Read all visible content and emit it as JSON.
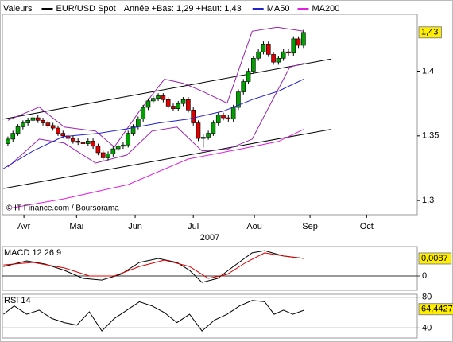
{
  "chart_data": [
    {
      "type": "candlestick",
      "header_label": "Valeurs",
      "title": "EUR/USD Spot",
      "subtitle": "Année +Bas: 1,29 +Haut: 1,43",
      "source": "© IT-Finance.com / Boursorama",
      "xlabel": "2007",
      "xlim": [
        -1.1,
        81.7
      ],
      "ylim": [
        1.289,
        1.444
      ],
      "xticks": [
        {
          "value": 3.2,
          "label": "Avr"
        },
        {
          "value": 13.7,
          "label": "Mai"
        },
        {
          "value": 25.4,
          "label": "Jun"
        },
        {
          "value": 37,
          "label": "Jul"
        },
        {
          "value": 49.2,
          "label": "Aou"
        },
        {
          "value": 60.3,
          "label": "Sep"
        },
        {
          "value": 71.6,
          "label": "Oct"
        }
      ],
      "yticks": [
        {
          "value": 1.4,
          "label": "1,4"
        },
        {
          "value": 1.35,
          "label": "1,35"
        },
        {
          "value": 1.3,
          "label": "1,3"
        }
      ],
      "last_label": {
        "value": 1.43,
        "label": "1,43"
      },
      "up_color": "#00a000",
      "down_color": "#e00000",
      "series": [
        {
          "name": "EUR/USD Spot",
          "color": "#000000",
          "open": [
            1.344,
            1.3475,
            1.352,
            1.357,
            1.36,
            1.362,
            1.364,
            1.362,
            1.36,
            1.358,
            1.356,
            1.352,
            1.35,
            1.348,
            1.346,
            1.345,
            1.344,
            1.346,
            1.342,
            1.337,
            1.333,
            1.336,
            1.34,
            1.342,
            1.343,
            1.352,
            1.357,
            1.363,
            1.372,
            1.377,
            1.379,
            1.381,
            1.378,
            1.373,
            1.371,
            1.375,
            1.378,
            1.37,
            1.36,
            1.348,
            1.349,
            1.352,
            1.36,
            1.366,
            1.364,
            1.363,
            1.372,
            1.384,
            1.392,
            1.4,
            1.41,
            1.415,
            1.421,
            1.413,
            1.407,
            1.41,
            1.415,
            1.414,
            1.425,
            1.42
          ],
          "high": [
            1.3495,
            1.354,
            1.359,
            1.362,
            1.364,
            1.366,
            1.366,
            1.364,
            1.362,
            1.36,
            1.358,
            1.354,
            1.352,
            1.35,
            1.348,
            1.347,
            1.348,
            1.348,
            1.344,
            1.339,
            1.338,
            1.342,
            1.344,
            1.345,
            1.354,
            1.359,
            1.365,
            1.374,
            1.379,
            1.381,
            1.383,
            1.383,
            1.38,
            1.375,
            1.377,
            1.38,
            1.38,
            1.372,
            1.362,
            1.351,
            1.354,
            1.362,
            1.368,
            1.368,
            1.366,
            1.374,
            1.386,
            1.394,
            1.402,
            1.412,
            1.417,
            1.423,
            1.423,
            1.415,
            1.412,
            1.417,
            1.417,
            1.427,
            1.427,
            1.432
          ],
          "low": [
            1.342,
            1.3455,
            1.35,
            1.355,
            1.358,
            1.36,
            1.36,
            1.358,
            1.356,
            1.354,
            1.35,
            1.348,
            1.346,
            1.344,
            1.343,
            1.342,
            1.342,
            1.34,
            1.335,
            1.331,
            1.331,
            1.334,
            1.338,
            1.34,
            1.341,
            1.35,
            1.355,
            1.361,
            1.37,
            1.375,
            1.377,
            1.376,
            1.371,
            1.369,
            1.369,
            1.373,
            1.368,
            1.358,
            1.346,
            1.341,
            1.347,
            1.35,
            1.358,
            1.362,
            1.361,
            1.361,
            1.37,
            1.382,
            1.39,
            1.398,
            1.408,
            1.413,
            1.411,
            1.405,
            1.405,
            1.408,
            1.412,
            1.412,
            1.418,
            1.418
          ],
          "close": [
            1.3475,
            1.352,
            1.357,
            1.36,
            1.362,
            1.364,
            1.362,
            1.36,
            1.358,
            1.356,
            1.352,
            1.35,
            1.348,
            1.346,
            1.345,
            1.344,
            1.346,
            1.342,
            1.337,
            1.333,
            1.336,
            1.34,
            1.342,
            1.343,
            1.352,
            1.357,
            1.363,
            1.372,
            1.377,
            1.379,
            1.381,
            1.378,
            1.373,
            1.371,
            1.375,
            1.378,
            1.37,
            1.36,
            1.348,
            1.349,
            1.352,
            1.36,
            1.366,
            1.364,
            1.363,
            1.372,
            1.384,
            1.392,
            1.4,
            1.41,
            1.415,
            1.421,
            1.413,
            1.407,
            1.41,
            1.415,
            1.414,
            1.425,
            1.42,
            1.43
          ]
        },
        {
          "name": "MA50",
          "color": "#2222cc",
          "x": [
            -0.9,
            5,
            11,
            18,
            24,
            30,
            36,
            43,
            49,
            54,
            59
          ],
          "values": [
            1.3247,
            1.3383,
            1.3494,
            1.3519,
            1.3556,
            1.3599,
            1.363,
            1.3691,
            1.3784,
            1.3846,
            1.3938
          ]
        },
        {
          "name": "MA200",
          "color": "#e020e0",
          "x": [
            0,
            11,
            24,
            36,
            46,
            54,
            59
          ],
          "values": [
            1.2938,
            1.3012,
            1.3123,
            1.3321,
            1.3395,
            1.3457,
            1.355
          ]
        }
      ],
      "overlays": [
        {
          "color": "#000000",
          "x": [
            -0.9,
            64.4
          ],
          "values": [
            1.363,
            1.4093
          ]
        },
        {
          "color": "#000000",
          "x": [
            -0.9,
            64.4
          ],
          "values": [
            1.3093,
            1.355
          ]
        },
        {
          "color": "#9a22b0",
          "x": [
            0,
            6.25,
            11.25,
            17.5,
            21.25,
            26.25,
            31.25,
            35,
            38.75,
            43.75,
            48.75,
            53.75,
            59.125
          ],
          "values": [
            1.362,
            1.3722,
            1.3568,
            1.3537,
            1.3414,
            1.3691,
            1.3938,
            1.3907,
            1.3846,
            1.3753,
            1.4309,
            1.434,
            1.4309
          ]
        },
        {
          "color": "#9a22b0",
          "x": [
            0,
            6.25,
            11.25,
            17.5,
            23.75,
            28.75,
            33.75,
            38.75,
            43.75,
            48.75,
            52.5,
            56.25,
            59.125
          ],
          "values": [
            1.3259,
            1.3475,
            1.3444,
            1.329,
            1.3352,
            1.3537,
            1.3568,
            1.3383,
            1.3395,
            1.3475,
            1.3753,
            1.4031,
            1.4062
          ]
        }
      ]
    },
    {
      "type": "line",
      "title": "MACD 12 26 9",
      "xlim": [
        -1.1,
        81.7
      ],
      "ylim": [
        -0.0071,
        0.0146
      ],
      "yticks": [
        0
      ],
      "last_label": {
        "value": 0.0087,
        "label": "0,0087"
      },
      "series": [
        {
          "color": "#000000",
          "x": [
            -0.875,
            3.75,
            7.5,
            11.25,
            15,
            18.75,
            22.5,
            26.25,
            30,
            33.75,
            36.25,
            38.75,
            41.875,
            45,
            48.75,
            51.25,
            55,
            59.125
          ],
          "values": [
            0.0047,
            0.0075,
            0.0059,
            0.0028,
            -0.0012,
            -0.002,
            0.0008,
            0.0067,
            0.0087,
            0.0067,
            0.0028,
            -0.0032,
            -0.0012,
            0.0047,
            0.0115,
            0.0126,
            0.0099,
            0.0087
          ]
        },
        {
          "color": "#dd0000",
          "x": [
            -0.875,
            5,
            11.25,
            16.25,
            21.25,
            26.25,
            31.25,
            36.25,
            40,
            43.75,
            47.5,
            51.25,
            55,
            59.125
          ],
          "values": [
            0.0055,
            0.0067,
            0.004,
            0,
            0,
            0.0047,
            0.0079,
            0.0047,
            -0.0012,
            0.0008,
            0.0067,
            0.0115,
            0.0099,
            0.0087
          ]
        }
      ]
    },
    {
      "type": "line",
      "title": "RSI 14",
      "xlim": [
        -1.1,
        81.7
      ],
      "ylim": [
        27,
        83.7
      ],
      "yticks": [
        80,
        40
      ],
      "last_label": {
        "value": 64.4427,
        "label": "64,4427"
      },
      "series": [
        {
          "color": "#000000",
          "x": [
            -0.875,
            1.25,
            3.75,
            6.25,
            8.75,
            11.25,
            13.75,
            16.25,
            18.75,
            21.25,
            23.75,
            26.25,
            28.75,
            31.25,
            33.75,
            36.25,
            38.75,
            41.25,
            43.75,
            46.25,
            48.75,
            51.25,
            53.125,
            55,
            56.875,
            59.125
          ],
          "values": [
            57.8,
            68.6,
            57.8,
            63.2,
            52.4,
            47,
            43.7,
            61,
            36.2,
            52.4,
            63.2,
            74,
            68.6,
            60,
            47,
            57.8,
            36.2,
            50.3,
            57.8,
            68.6,
            75.7,
            74,
            57.8,
            63.2,
            57.8,
            63.2
          ]
        }
      ]
    }
  ]
}
